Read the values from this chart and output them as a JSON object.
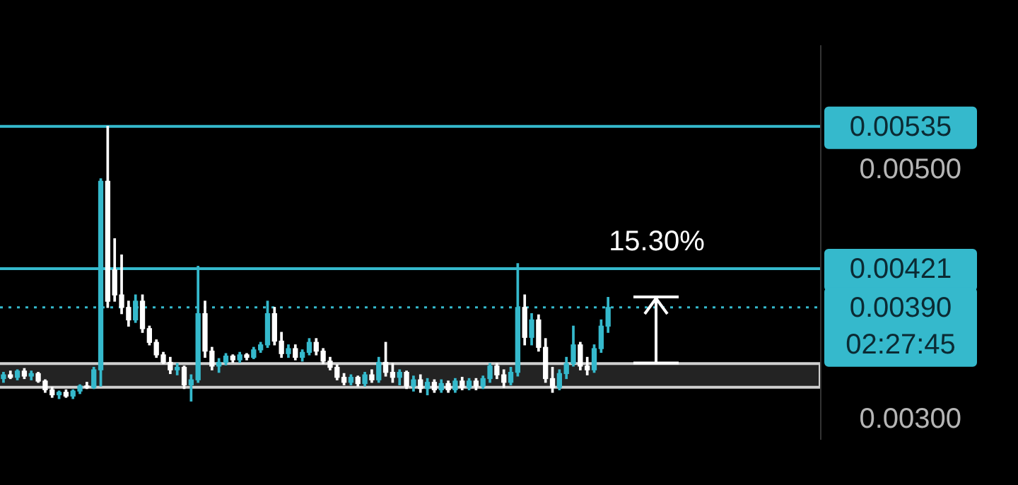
{
  "chart_data": {
    "type": "candlestick",
    "categories": [
      null,
      null,
      null,
      null,
      null,
      null,
      null,
      null,
      null,
      null,
      null,
      null,
      null,
      null,
      null,
      null,
      null,
      null,
      null,
      null,
      null,
      null,
      null,
      null,
      null,
      null,
      null,
      null,
      null,
      null,
      null,
      null,
      null,
      null,
      null,
      null,
      null,
      null,
      null,
      null,
      null,
      null,
      null,
      null,
      null,
      null,
      null,
      null,
      null,
      null,
      null,
      null,
      null,
      null,
      null,
      null,
      null,
      null,
      null,
      null,
      null,
      null,
      null,
      null,
      null,
      null,
      null,
      null,
      null,
      null,
      null,
      null,
      null,
      null,
      null,
      null,
      null,
      null,
      null,
      null,
      null,
      null,
      null,
      null,
      null,
      null,
      null,
      null,
      null,
      null,
      null,
      null,
      null,
      null,
      null,
      null,
      null,
      null,
      null,
      null,
      null,
      null,
      null,
      null,
      null,
      null,
      null,
      null,
      null,
      null,
      null,
      null,
      null,
      null,
      null,
      null,
      null,
      null
    ],
    "ohlc": [
      [
        0.00333,
        0.00338,
        0.0033,
        0.00336
      ],
      [
        0.00336,
        0.00339,
        0.00333,
        0.00334
      ],
      [
        0.00334,
        0.0034,
        0.00332,
        0.00339
      ],
      [
        0.00339,
        0.00341,
        0.00333,
        0.00335
      ],
      [
        0.00335,
        0.00339,
        0.00332,
        0.00337
      ],
      [
        0.00337,
        0.00338,
        0.0033,
        0.00331
      ],
      [
        0.00331,
        0.00332,
        0.00322,
        0.00324
      ],
      [
        0.00324,
        0.00326,
        0.00318,
        0.0032
      ],
      [
        0.0032,
        0.00323,
        0.00317,
        0.00322
      ],
      [
        0.00322,
        0.00324,
        0.00318,
        0.00319
      ],
      [
        0.00319,
        0.00324,
        0.00317,
        0.00323
      ],
      [
        0.00323,
        0.00328,
        0.00321,
        0.00327
      ],
      [
        0.00327,
        0.0033,
        0.00325,
        0.00326
      ],
      [
        0.00326,
        0.00342,
        0.00325,
        0.0034
      ],
      [
        0.0034,
        0.00493,
        0.00327,
        0.00491
      ],
      [
        0.00491,
        0.00535,
        0.0039,
        0.00395
      ],
      [
        0.0042,
        0.00445,
        0.00395,
        0.004
      ],
      [
        0.004,
        0.00432,
        0.00385,
        0.0039
      ],
      [
        0.0039,
        0.00395,
        0.00375,
        0.0038
      ],
      [
        0.0038,
        0.004,
        0.00378,
        0.00395
      ],
      [
        0.00395,
        0.004,
        0.0037,
        0.00373
      ],
      [
        0.00373,
        0.00375,
        0.0036,
        0.00362
      ],
      [
        0.00362,
        0.00364,
        0.0035,
        0.00352
      ],
      [
        0.00352,
        0.00354,
        0.00345,
        0.00346
      ],
      [
        0.00346,
        0.0035,
        0.00337,
        0.0034
      ],
      [
        0.0034,
        0.00345,
        0.00336,
        0.00342
      ],
      [
        0.00342,
        0.00343,
        0.00325,
        0.00328
      ],
      [
        0.00328,
        0.00336,
        0.00315,
        0.00332
      ],
      [
        0.00332,
        0.00423,
        0.0033,
        0.00385
      ],
      [
        0.00385,
        0.00395,
        0.0035,
        0.00355
      ],
      [
        0.00355,
        0.00358,
        0.0034,
        0.00343
      ],
      [
        0.00343,
        0.00349,
        0.00338,
        0.00346
      ],
      [
        0.00346,
        0.00353,
        0.00344,
        0.00351
      ],
      [
        0.00351,
        0.00352,
        0.00346,
        0.00348
      ],
      [
        0.00348,
        0.00354,
        0.00346,
        0.00352
      ],
      [
        0.00352,
        0.00353,
        0.00348,
        0.0035
      ],
      [
        0.0035,
        0.00358,
        0.00349,
        0.00356
      ],
      [
        0.00356,
        0.00362,
        0.00354,
        0.0036
      ],
      [
        0.0036,
        0.00395,
        0.00358,
        0.00385
      ],
      [
        0.00385,
        0.0039,
        0.0036,
        0.00363
      ],
      [
        0.00363,
        0.0037,
        0.0035,
        0.00353
      ],
      [
        0.00353,
        0.0036,
        0.0035,
        0.00357
      ],
      [
        0.00357,
        0.0036,
        0.00348,
        0.0035
      ],
      [
        0.0035,
        0.00356,
        0.00347,
        0.00354
      ],
      [
        0.00354,
        0.00365,
        0.00352,
        0.00362
      ],
      [
        0.00362,
        0.00365,
        0.00352,
        0.00355
      ],
      [
        0.00355,
        0.00357,
        0.00345,
        0.00347
      ],
      [
        0.00347,
        0.0035,
        0.0034,
        0.00342
      ],
      [
        0.00342,
        0.00344,
        0.00332,
        0.00334
      ],
      [
        0.00334,
        0.00337,
        0.00328,
        0.0033
      ],
      [
        0.0033,
        0.00336,
        0.00328,
        0.00334
      ],
      [
        0.00334,
        0.00335,
        0.00327,
        0.00329
      ],
      [
        0.00329,
        0.00338,
        0.00327,
        0.00336
      ],
      [
        0.00336,
        0.0034,
        0.0033,
        0.00332
      ],
      [
        0.00332,
        0.0035,
        0.0033,
        0.00346
      ],
      [
        0.00346,
        0.00362,
        0.00335,
        0.00338
      ],
      [
        0.00338,
        0.00345,
        0.0033,
        0.00334
      ],
      [
        0.00334,
        0.0034,
        0.00328,
        0.00338
      ],
      [
        0.00338,
        0.00339,
        0.00325,
        0.00327
      ],
      [
        0.00327,
        0.00335,
        0.00323,
        0.00332
      ],
      [
        0.00332,
        0.00336,
        0.00322,
        0.00325
      ],
      [
        0.00325,
        0.00333,
        0.0032,
        0.0033
      ],
      [
        0.0033,
        0.00332,
        0.00322,
        0.00324
      ],
      [
        0.00324,
        0.00332,
        0.00322,
        0.00329
      ],
      [
        0.00329,
        0.00331,
        0.00322,
        0.00324
      ],
      [
        0.00324,
        0.00333,
        0.00322,
        0.00331
      ],
      [
        0.00331,
        0.00334,
        0.00324,
        0.00326
      ],
      [
        0.00326,
        0.00333,
        0.00324,
        0.00331
      ],
      [
        0.00331,
        0.00333,
        0.00324,
        0.00327
      ],
      [
        0.00327,
        0.00335,
        0.00325,
        0.00333
      ],
      [
        0.00333,
        0.00345,
        0.0033,
        0.00343
      ],
      [
        0.00343,
        0.00345,
        0.00333,
        0.00336
      ],
      [
        0.00336,
        0.0034,
        0.00326,
        0.0033
      ],
      [
        0.0033,
        0.00342,
        0.00328,
        0.00338
      ],
      [
        0.00338,
        0.00425,
        0.00335,
        0.0039
      ],
      [
        0.0039,
        0.004,
        0.0036,
        0.00366
      ],
      [
        0.00366,
        0.00385,
        0.0036,
        0.0038
      ],
      [
        0.0038,
        0.00384,
        0.00355,
        0.00358
      ],
      [
        0.00358,
        0.00365,
        0.0033,
        0.00333
      ],
      [
        0.00333,
        0.00342,
        0.00322,
        0.00326
      ],
      [
        0.00326,
        0.0034,
        0.00324,
        0.00337
      ],
      [
        0.00337,
        0.0035,
        0.00333,
        0.00345
      ],
      [
        0.00345,
        0.00375,
        0.00343,
        0.0036
      ],
      [
        0.0036,
        0.00362,
        0.0034,
        0.00343
      ],
      [
        0.00343,
        0.0035,
        0.00336,
        0.0034
      ],
      [
        0.0034,
        0.0036,
        0.00338,
        0.00357
      ],
      [
        0.00357,
        0.0038,
        0.00354,
        0.00375
      ],
      [
        0.00375,
        0.00398,
        0.0037,
        0.0039
      ],
      null,
      null,
      null,
      null,
      null,
      null,
      null,
      null,
      null,
      null,
      null,
      null,
      null,
      null,
      null,
      null,
      null,
      null,
      null,
      null,
      null,
      null,
      null,
      null,
      null,
      null,
      null,
      null,
      null,
      null
    ],
    "colors": [
      "#35b9cc",
      "#ffffff",
      "#35b9cc",
      "#ffffff",
      "#35b9cc",
      "#ffffff",
      "#ffffff",
      "#ffffff",
      "#35b9cc",
      "#ffffff",
      "#35b9cc",
      "#35b9cc",
      "#ffffff",
      "#35b9cc",
      "#35b9cc",
      "#ffffff",
      "#ffffff",
      "#ffffff",
      "#ffffff",
      "#35b9cc",
      "#ffffff",
      "#ffffff",
      "#ffffff",
      "#ffffff",
      "#ffffff",
      "#35b9cc",
      "#ffffff",
      "#35b9cc",
      "#35b9cc",
      "#ffffff",
      "#ffffff",
      "#35b9cc",
      "#35b9cc",
      "#ffffff",
      "#35b9cc",
      "#ffffff",
      "#35b9cc",
      "#35b9cc",
      "#35b9cc",
      "#ffffff",
      "#ffffff",
      "#35b9cc",
      "#ffffff",
      "#35b9cc",
      "#35b9cc",
      "#ffffff",
      "#ffffff",
      "#ffffff",
      "#ffffff",
      "#ffffff",
      "#35b9cc",
      "#ffffff",
      "#35b9cc",
      "#ffffff",
      "#35b9cc",
      "#ffffff",
      "#ffffff",
      "#35b9cc",
      "#ffffff",
      "#35b9cc",
      "#ffffff",
      "#35b9cc",
      "#ffffff",
      "#35b9cc",
      "#ffffff",
      "#35b9cc",
      "#ffffff",
      "#35b9cc",
      "#ffffff",
      "#35b9cc",
      "#35b9cc",
      "#ffffff",
      "#ffffff",
      "#35b9cc",
      "#35b9cc",
      "#ffffff",
      "#35b9cc",
      "#ffffff",
      "#ffffff",
      "#ffffff",
      "#35b9cc",
      "#35b9cc",
      "#35b9cc",
      "#ffffff",
      "#ffffff",
      "#35b9cc",
      "#35b9cc",
      "#35b9cc",
      null,
      null,
      null,
      null,
      null,
      null,
      null,
      null,
      null,
      null,
      null,
      null,
      null,
      null,
      null,
      null,
      null,
      null,
      null,
      null,
      null,
      null,
      null,
      null,
      null,
      null,
      null,
      null,
      null,
      null
    ],
    "ylim": [
      0.00284,
      0.006
    ],
    "yticks": [
      {
        "value": 0.003,
        "label": "0.00300"
      },
      {
        "value": 0.005,
        "label": "0.00500"
      }
    ],
    "tick_labels": "y",
    "ref_lines": [
      {
        "axis": "y",
        "value": 0.00535,
        "label": "0.00535",
        "color": "#35b9cc",
        "line_style": "solid"
      },
      {
        "axis": "y",
        "value": 0.00421,
        "label": "0.00421",
        "color": "#35b9cc",
        "line_style": "solid"
      },
      {
        "axis": "y",
        "value": 0.0039,
        "label": "0.00390\n02:27:45",
        "color": "#35b9cc",
        "line_style": "dotted"
      }
    ],
    "bands": [
      {
        "axis": "y",
        "from": 0.00326,
        "to": 0.00345,
        "color": "#cfcfcf"
      }
    ],
    "annotations": [
      "15.30%"
    ]
  }
}
